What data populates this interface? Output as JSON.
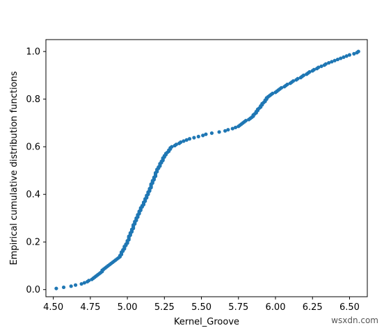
{
  "chart_data": {
    "type": "scatter",
    "xlabel": "Kernel_Groove",
    "ylabel": "Empirical cumulative distribution functions",
    "xlim": [
      4.45,
      6.62
    ],
    "ylim": [
      -0.03,
      1.05
    ],
    "xticks": [
      4.5,
      4.75,
      5.0,
      5.25,
      5.5,
      5.75,
      6.0,
      6.25,
      6.5
    ],
    "xtick_labels": [
      "4.50",
      "4.75",
      "5.00",
      "5.25",
      "5.50",
      "5.75",
      "6.00",
      "6.25",
      "6.50"
    ],
    "yticks": [
      0.0,
      0.2,
      0.4,
      0.6,
      0.8,
      1.0
    ],
    "ytick_labels": [
      "0.0",
      "0.2",
      "0.4",
      "0.6",
      "0.8",
      "1.0"
    ],
    "grid": false,
    "color": "#1f77b4",
    "curve_knots": {
      "x": [
        4.52,
        4.6,
        4.7,
        4.78,
        4.85,
        4.95,
        5.0,
        5.05,
        5.1,
        5.15,
        5.2,
        5.25,
        5.3,
        5.4,
        5.55,
        5.65,
        5.75,
        5.85,
        5.9,
        5.95,
        6.05,
        6.15,
        6.25,
        6.35,
        6.45,
        6.56
      ],
      "y": [
        0.005,
        0.012,
        0.025,
        0.05,
        0.09,
        0.14,
        0.2,
        0.28,
        0.35,
        0.42,
        0.5,
        0.56,
        0.6,
        0.63,
        0.655,
        0.665,
        0.685,
        0.73,
        0.77,
        0.81,
        0.85,
        0.885,
        0.92,
        0.95,
        0.975,
        0.997
      ]
    },
    "n_points": 210
  },
  "watermark": "wsxdn.com"
}
